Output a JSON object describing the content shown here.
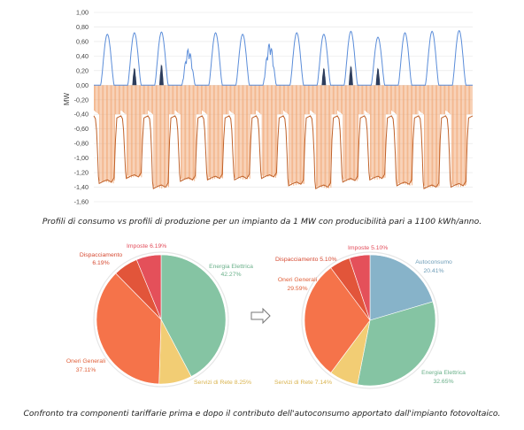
{
  "captions": {
    "top": "Profili di consumo vs profili di produzione per un impianto da 1 MW con producibilità pari a 1100 kWh/anno.",
    "bottom": "Confronto tra componenti tariffarie prima e dopo il contributo dell'autoconsumo apportato dall'impianto fotovoltaico."
  },
  "colors": {
    "production": "#5b8dd9",
    "selfconsumption": "#2d3d5c",
    "consumption_bars": "#f0a470",
    "consumption_line": "#c0622a",
    "grid": "#e4e4e4",
    "arrow": "#777777"
  },
  "chart_data": [
    {
      "type": "line",
      "ylabel": "MW",
      "ylim": [
        -1.6,
        1.0
      ],
      "yticks": [
        "1,00",
        "0,80",
        "0,60",
        "0,40",
        "0,20",
        "0,00",
        "-0,20",
        "-0,40",
        "-0,60",
        "-0,80",
        "-1,00",
        "-1,20",
        "-1,40",
        "-1,60"
      ],
      "grid": true,
      "x_count": 14,
      "series": [
        {
          "kind": "production",
          "daily_peaks": [
            0.7,
            0.72,
            0.73,
            0.5,
            0.72,
            0.7,
            0.58,
            0.72,
            0.7,
            0.74,
            0.66,
            0.72,
            0.74,
            0.75
          ]
        },
        {
          "kind": "selfconsumption",
          "daily_peaks": [
            0.0,
            0.25,
            0.3,
            0.0,
            0.0,
            0.0,
            0.0,
            0.0,
            0.25,
            0.28,
            0.25,
            0.0,
            0.0,
            0.0
          ]
        },
        {
          "kind": "consumption_bars",
          "daily_baseline": [
            -0.4,
            -0.4,
            -0.4,
            -0.4,
            -0.4,
            -0.4,
            -0.4,
            -0.4,
            -0.4,
            -0.4,
            -0.4,
            -0.4,
            -0.4,
            -0.4
          ]
        },
        {
          "kind": "consumption_line",
          "daily_min": [
            -1.35,
            -1.28,
            -1.42,
            -1.32,
            -1.3,
            -1.3,
            -1.28,
            -1.38,
            -1.42,
            -1.33,
            -1.3,
            -1.38,
            -1.42,
            -1.4
          ]
        }
      ]
    },
    {
      "type": "pie",
      "slices": [
        {
          "label": "Energia Elettrica",
          "value": "42.27%",
          "v": 42.27,
          "color": "#85c4a3"
        },
        {
          "label": "Servizi di Rete",
          "value": "8.25%",
          "v": 8.25,
          "color": "#f2cd74"
        },
        {
          "label": "Oneri Generali",
          "value": "37.11%",
          "v": 37.11,
          "color": "#f5734a"
        },
        {
          "label": "Dispacciamento",
          "value": "6.19%",
          "v": 6.19,
          "color": "#e2553a"
        },
        {
          "label": "Imposte",
          "value": "6.19%",
          "v": 6.19,
          "color": "#e4505a"
        }
      ]
    },
    {
      "type": "pie",
      "slices": [
        {
          "label": "Autoconsumo",
          "value": "20.41%",
          "v": 20.41,
          "color": "#87b3c9"
        },
        {
          "label": "Energia Elettrica",
          "value": "32.65%",
          "v": 32.65,
          "color": "#85c4a3"
        },
        {
          "label": "Servizi di Rete",
          "value": "7.14%",
          "v": 7.14,
          "color": "#f2cd74"
        },
        {
          "label": "Oneri Generali",
          "value": "29.59%",
          "v": 29.59,
          "color": "#f5734a"
        },
        {
          "label": "Dispacciamento",
          "value": "5.10%",
          "v": 5.1,
          "color": "#e2553a"
        },
        {
          "label": "Imposte",
          "value": "5.10%",
          "v": 5.1,
          "color": "#e4505a"
        }
      ]
    }
  ]
}
